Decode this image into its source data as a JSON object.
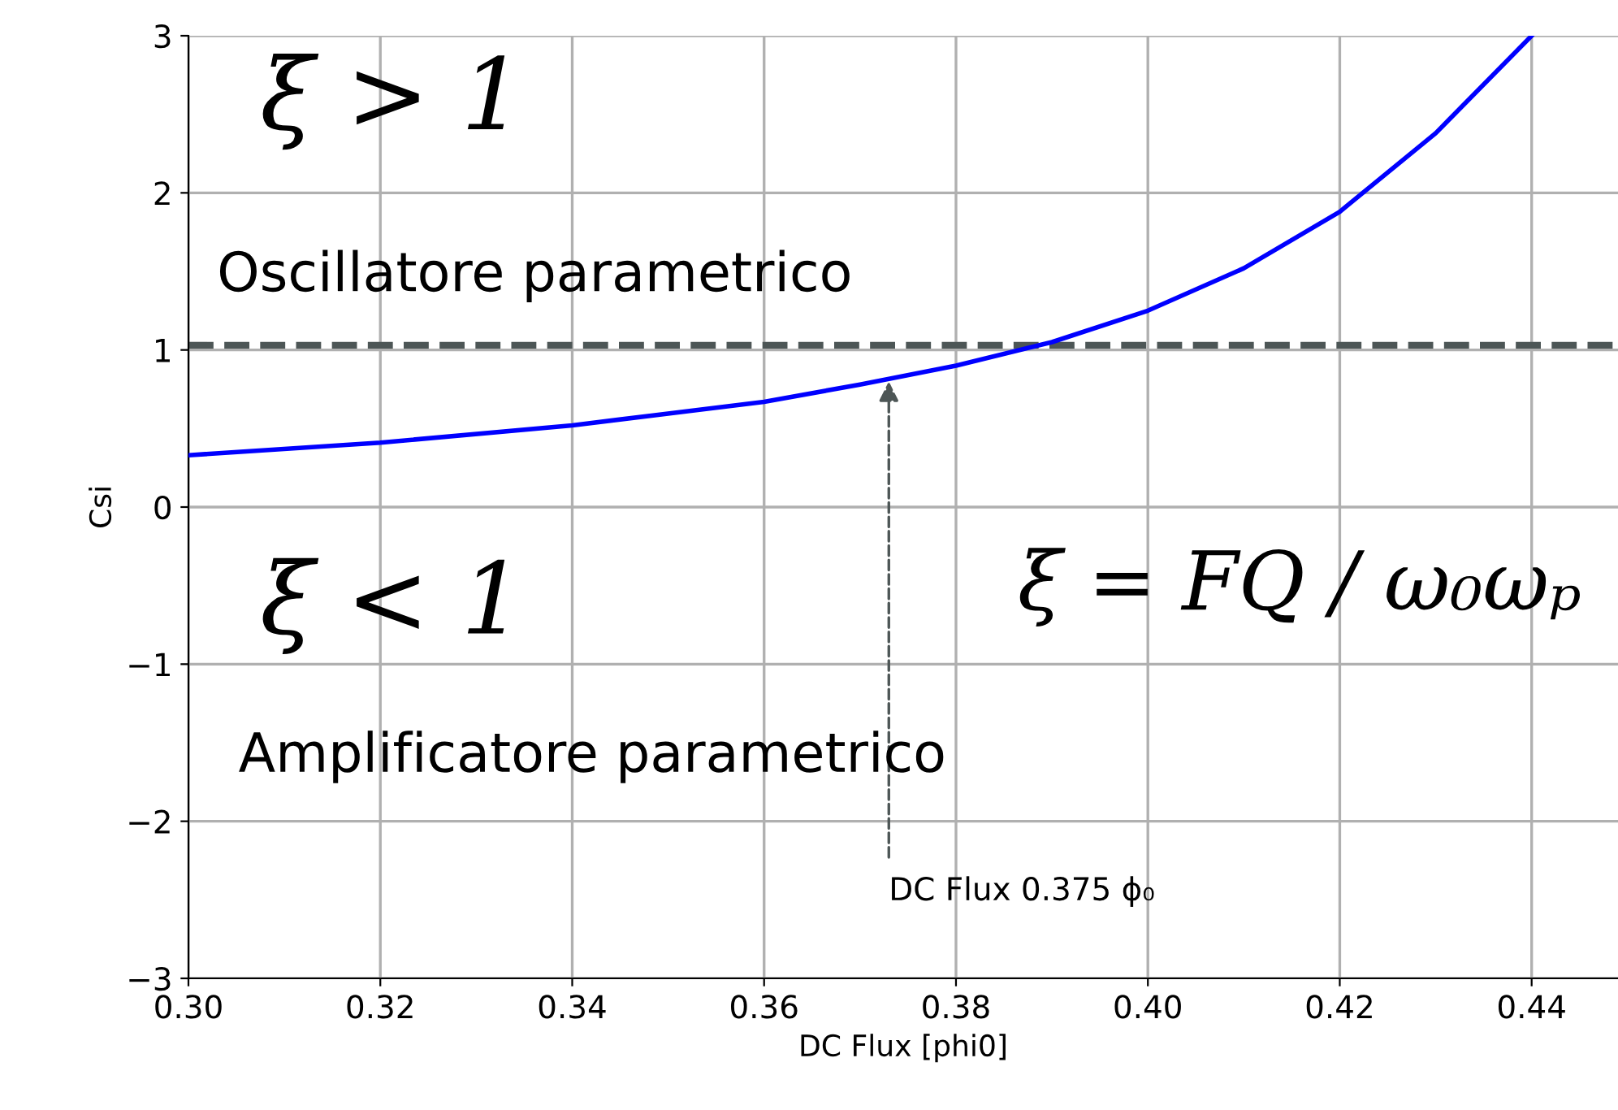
{
  "chart_data": {
    "type": "line",
    "xlabel": "DC Flux [phi0]",
    "ylabel": "Csi",
    "x": [
      0.3,
      0.32,
      0.34,
      0.36,
      0.37,
      0.38,
      0.39,
      0.4,
      0.41,
      0.42,
      0.43,
      0.44
    ],
    "series": [
      {
        "color": "#0000ff",
        "values": [
          0.33,
          0.41,
          0.52,
          0.67,
          0.78,
          0.9,
          1.05,
          1.25,
          1.52,
          1.88,
          2.38,
          3.0
        ]
      }
    ],
    "xlim": [
      0.3,
      0.449
    ],
    "xticks": [
      {
        "value": 0.3,
        "label": "0.30"
      },
      0.32,
      0.34,
      0.36,
      0.38,
      {
        "value": 0.4,
        "label": "0.40"
      },
      0.42,
      0.44
    ],
    "ylim": [
      -3,
      3
    ],
    "yticks": [
      {
        "value": -3,
        "label": "−3"
      },
      {
        "value": -2,
        "label": "−2"
      },
      {
        "value": -1,
        "label": "−1"
      },
      0,
      1,
      2,
      3
    ],
    "grid": true,
    "marker": "none",
    "line_style": "solid",
    "ref_lines": [
      {
        "axis": "y",
        "value": 1.03,
        "color": "#4d5656",
        "line_style": "dashed"
      }
    ],
    "annotations": [
      {
        "text": "DC Flux 0.375 ϕ₀",
        "x": 0.373,
        "y": 0.8
      },
      "ξ > 1",
      "Oscillatore parametrico",
      "ξ < 1",
      "Amplificatore parametrico",
      "ξ = FQ / ω₀ωₚ"
    ]
  }
}
